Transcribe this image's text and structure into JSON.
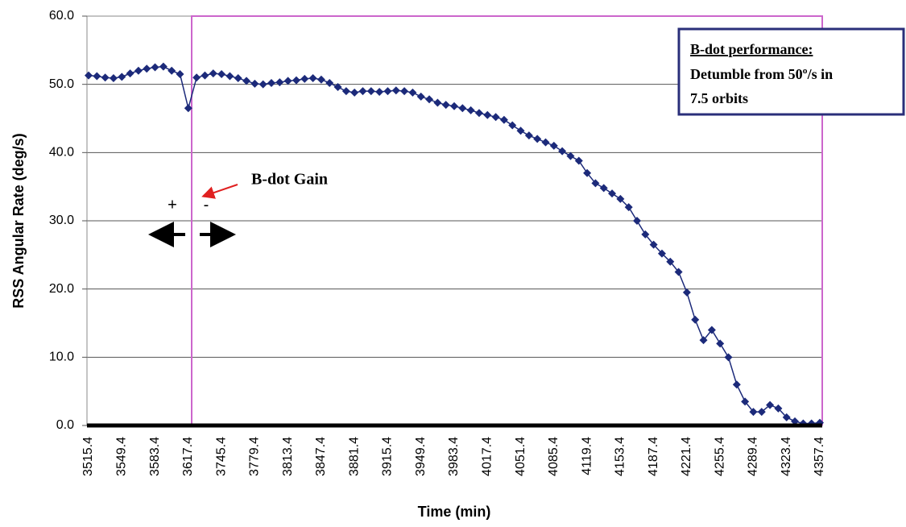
{
  "chart_data": {
    "type": "line",
    "xlabel": "Time (min)",
    "ylabel": "RSS Angular Rate (deg/s)",
    "categories": [
      "3515.4",
      null,
      null,
      null,
      "3549.4",
      null,
      null,
      null,
      "3583.4",
      null,
      null,
      null,
      "3617.4",
      null,
      null,
      null,
      "3745.4",
      null,
      null,
      null,
      "3779.4",
      null,
      null,
      null,
      "3813.4",
      null,
      null,
      null,
      "3847.4",
      null,
      null,
      null,
      "3881.4",
      null,
      null,
      null,
      "3915.4",
      null,
      null,
      null,
      "3949.4",
      null,
      null,
      null,
      "3983.4",
      null,
      null,
      null,
      "4017.4",
      null,
      null,
      null,
      "4051.4",
      null,
      null,
      null,
      "4085.4",
      null,
      null,
      null,
      "4119.4",
      null,
      null,
      null,
      "4153.4",
      null,
      null,
      null,
      "4187.4",
      null,
      null,
      null,
      "4221.4",
      null,
      null,
      null,
      "4255.4",
      null,
      null,
      null,
      "4289.4",
      null,
      null,
      null,
      "4323.4",
      null,
      null,
      null,
      "4357.4"
    ],
    "series": [
      {
        "color": "#1c2a7a",
        "values": [
          51.3,
          51.2,
          51.0,
          50.9,
          51.1,
          51.6,
          52.0,
          52.3,
          52.5,
          52.6,
          52.0,
          51.5,
          46.5,
          51.0,
          51.3,
          51.6,
          51.5,
          51.2,
          50.9,
          50.5,
          50.1,
          50.0,
          50.2,
          50.3,
          50.5,
          50.6,
          50.8,
          50.9,
          50.7,
          50.2,
          49.6,
          49.0,
          48.8,
          49.0,
          49.0,
          48.9,
          49.0,
          49.1,
          49.0,
          48.8,
          48.2,
          47.8,
          47.3,
          47.0,
          46.8,
          46.5,
          46.2,
          45.8,
          45.5,
          45.2,
          44.8,
          44.0,
          43.2,
          42.5,
          42.0,
          41.5,
          41.0,
          40.2,
          39.5,
          38.8,
          37.0,
          35.5,
          34.8,
          34.0,
          33.2,
          32.0,
          30.0,
          28.0,
          26.5,
          25.2,
          24.0,
          22.5,
          19.5,
          15.5,
          12.5,
          14.0,
          12.0,
          10.0,
          6.0,
          3.5,
          2.0,
          2.0,
          3.0,
          2.5,
          1.2,
          0.6,
          0.3,
          0.3,
          0.4
        ]
      }
    ],
    "ylim": [
      0,
      60
    ],
    "yticks": [
      {
        "value": 0,
        "label": "0.0"
      },
      {
        "value": 10,
        "label": "10.0"
      },
      {
        "value": 20,
        "label": "20.0"
      },
      {
        "value": 30,
        "label": "30.0"
      },
      {
        "value": 40,
        "label": "40.0"
      },
      {
        "value": 50,
        "label": "50.0"
      },
      {
        "value": 60,
        "label": "60.0"
      }
    ],
    "grid": true,
    "annotations": {
      "gain": "B-dot Gain",
      "plus": "+",
      "minus": "-",
      "box_title": "B-dot performance:",
      "box_line1": "Detumble from 50º/s in",
      "box_line2": "7.5 orbits"
    }
  }
}
